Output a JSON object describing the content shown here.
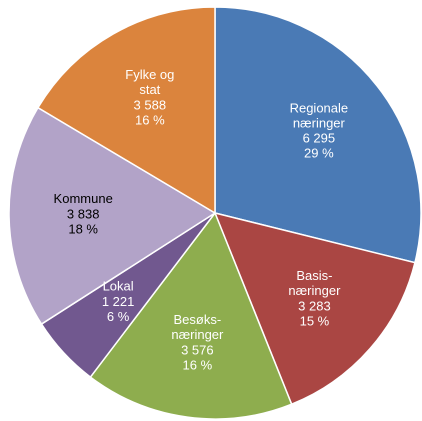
{
  "chart_data": {
    "type": "pie",
    "categories": [
      "Regionale\nnæringer",
      "Basis-\nnæringer",
      "Besøks-\nnæringer",
      "Lokal",
      "Kommune",
      "Fylke og\nstat"
    ],
    "values": [
      6295,
      3283,
      3576,
      1221,
      3838,
      3588
    ],
    "value_labels": [
      "6 295",
      "3 283",
      "3 576",
      "1 221",
      "3 838",
      "3 588"
    ],
    "percents": [
      29,
      15,
      16,
      6,
      18,
      16
    ],
    "percent_labels": [
      "29 %",
      "15 %",
      "16 %",
      "6 %",
      "18 %",
      "16 %"
    ],
    "colors": [
      "#4a7ab5",
      "#aa4643",
      "#8ead4e",
      "#71588f",
      "#b2a3c8",
      "#db843d"
    ],
    "label_colors": [
      "#ffffff",
      "#ffffff",
      "#ffffff",
      "#ffffff",
      "#000000",
      "#ffffff"
    ]
  }
}
